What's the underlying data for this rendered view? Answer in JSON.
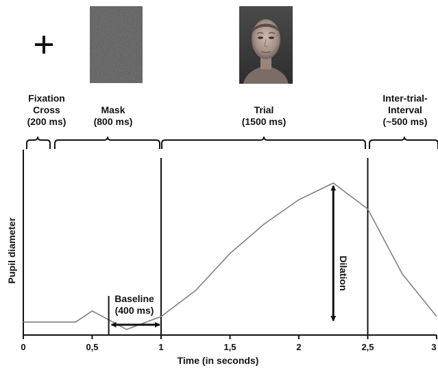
{
  "stimuli": {
    "mask_image": "random-noise-mask",
    "face_image": "neutral-face-photo"
  },
  "phases": [
    {
      "name": "Fixation Cross",
      "duration": "(200 ms)",
      "line1": "Fixation",
      "line2": "Cross",
      "line3": "(200 ms)"
    },
    {
      "name": "Mask",
      "duration": "(800 ms)",
      "line1": "Mask",
      "line2": "(800 ms)"
    },
    {
      "name": "Trial",
      "duration": "(1500 ms)",
      "line1": "Trial",
      "line2": "(1500 ms)"
    },
    {
      "name": "Inter-trial-Interval",
      "duration": "(~500 ms)",
      "line1": "Inter-trial-",
      "line2": "Interval",
      "line3": "(~500 ms)"
    }
  ],
  "annotations": {
    "baseline_line1": "Baseline",
    "baseline_line2": "(400 ms)",
    "dilation": "Dilation"
  },
  "chart_data": {
    "type": "line",
    "xlabel": "Time (in seconds)",
    "ylabel": "Pupil diameter",
    "xlim": [
      0,
      3
    ],
    "xticks": [
      0,
      0.5,
      1,
      1.5,
      2,
      2.5,
      3
    ],
    "xtick_labels": [
      "0",
      "0,5",
      "1",
      "1,5",
      "2",
      "2,5",
      "3"
    ],
    "ylim": [
      0,
      1
    ],
    "x": [
      0,
      0.38,
      0.5,
      0.75,
      1.0,
      1.25,
      1.5,
      1.75,
      2.0,
      2.25,
      2.5,
      2.75,
      3.0
    ],
    "y": [
      0.07,
      0.07,
      0.13,
      0.03,
      0.1,
      0.24,
      0.44,
      0.6,
      0.73,
      0.82,
      0.68,
      0.33,
      0.1
    ],
    "x_at_start": 0,
    "phase_markers": [
      1.0,
      2.5
    ],
    "baseline_start": 0.62,
    "baseline_end": 1.0,
    "dilation_from": 0.07,
    "dilation_to": 0.82,
    "dilation_x": 2.25,
    "grid": false
  }
}
